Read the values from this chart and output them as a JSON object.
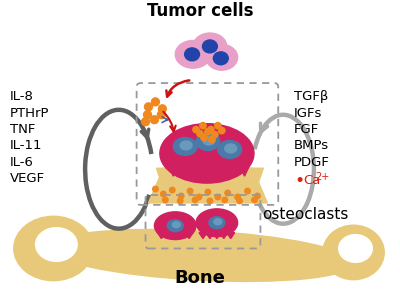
{
  "title": "Tumor cells",
  "bone_label": "Bone",
  "osteoclasts_label": "osteoclasts",
  "left_labels": [
    "IL-8",
    "PTHrP",
    "TNF",
    "IL-11",
    "IL-6",
    "VEGF"
  ],
  "right_labels": [
    "TGFβ",
    "IGFs",
    "FGF",
    "BMPs",
    "PDGF"
  ],
  "ca_label": "Ca",
  "ca_superscript": "2+",
  "bone_color": "#E8C97A",
  "tumor_cell_color": "#E8A0C8",
  "tumor_cell_nucleus": "#2244AA",
  "osteoclast_color": "#D02060",
  "osteoclast_color2": "#E03070",
  "osteoclast_nucleus": "#4A7AAA",
  "orange_dot_color": "#F08820",
  "arrow_left_color": "#606060",
  "arrow_right_color": "#AAAAAA",
  "ca_dot_color": "#DD2010",
  "dashed_box_color": "#999999",
  "background": "#FFFFFF",
  "title_fontsize": 12,
  "label_fontsize": 9.5,
  "bone_label_fontsize": 13,
  "osteoclast_label_fontsize": 11
}
